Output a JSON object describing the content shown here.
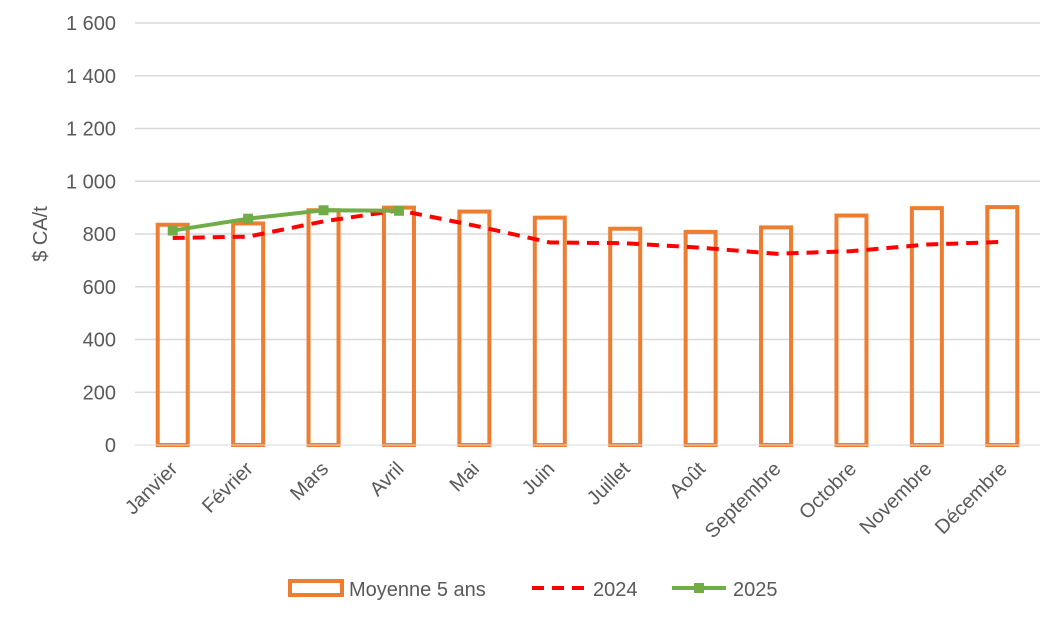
{
  "chart_data": {
    "type": "bar",
    "categories": [
      "Janvier",
      "Février",
      "Mars",
      "Avril",
      "Mai",
      "Juin",
      "Juillet",
      "Août",
      "Septembre",
      "Octobre",
      "Novembre",
      "Décembre"
    ],
    "ylabel": "$ CA/t",
    "ylim": [
      0,
      1600
    ],
    "yticks": [
      0,
      200,
      400,
      600,
      800,
      1000,
      1200,
      1400,
      1600
    ],
    "ytick_labels": [
      "0",
      "200",
      "400",
      "600",
      "800",
      "1 000",
      "1 200",
      "1 400",
      "1 600"
    ],
    "grid": true,
    "legend_position": "bottom",
    "series": [
      {
        "name": "Moyenne 5 ans",
        "kind": "bar",
        "style": "outline",
        "color": "#ED7D31",
        "values": [
          835,
          840,
          890,
          900,
          885,
          862,
          820,
          808,
          825,
          870,
          898,
          902
        ]
      },
      {
        "name": "2024",
        "kind": "line",
        "style": "dashed",
        "color": "#FF0000",
        "values": [
          785,
          790,
          848,
          890,
          832,
          768,
          765,
          748,
          725,
          735,
          760,
          770
        ]
      },
      {
        "name": "2025",
        "kind": "line",
        "style": "solid-square-markers",
        "color": "#70AD47",
        "values": [
          813,
          858,
          890,
          888,
          null,
          null,
          null,
          null,
          null,
          null,
          null,
          null
        ]
      }
    ]
  }
}
